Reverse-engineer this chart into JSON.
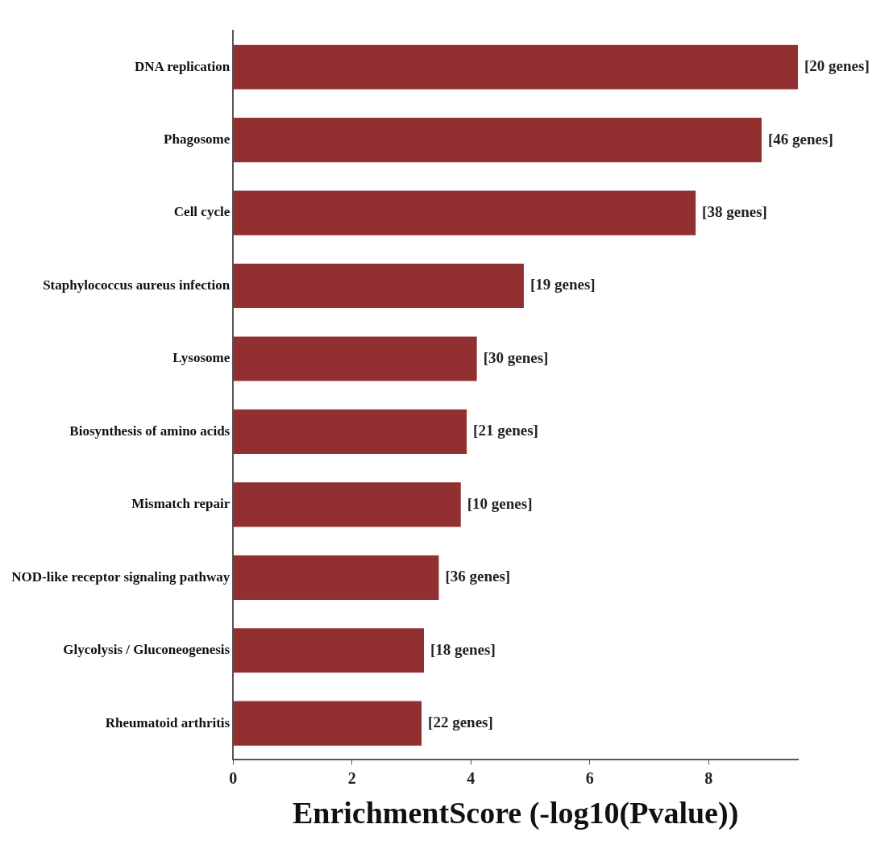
{
  "chart_data": {
    "type": "bar",
    "orientation": "horizontal",
    "xlabel": "EnrichmentScore (-log10(Pvalue))",
    "categories": [
      "DNA replication",
      "Phagosome",
      "Cell cycle",
      "Staphylococcus aureus infection",
      "Lysosome",
      "Biosynthesis of amino acids",
      "Mismatch repair",
      "NOD-like receptor signaling pathway",
      "Glycolysis / Gluconeogenesis",
      "Rheumatoid arthritis"
    ],
    "values": [
      9.5,
      8.89,
      7.78,
      4.89,
      4.1,
      3.93,
      3.83,
      3.46,
      3.21,
      3.17
    ],
    "annotations": [
      {
        "text": "[20 genes]",
        "x": 9.5,
        "y": "DNA replication"
      },
      {
        "text": "[46 genes]",
        "x": 8.89,
        "y": "Phagosome"
      },
      {
        "text": "[38 genes]",
        "x": 7.78,
        "y": "Cell cycle"
      },
      {
        "text": "[19 genes]",
        "x": 4.89,
        "y": "Staphylococcus aureus infection"
      },
      {
        "text": "[30 genes]",
        "x": 4.1,
        "y": "Lysosome"
      },
      {
        "text": "[21 genes]",
        "x": 3.93,
        "y": "Biosynthesis of amino acids"
      },
      {
        "text": "[10 genes]",
        "x": 3.83,
        "y": "Mismatch repair"
      },
      {
        "text": "[36 genes]",
        "x": 3.46,
        "y": "NOD-like receptor signaling pathway"
      },
      {
        "text": "[18 genes]",
        "x": 3.21,
        "y": "Glycolysis / Gluconeogenesis"
      },
      {
        "text": "[22 genes]",
        "x": 3.17,
        "y": "Rheumatoid arthritis"
      }
    ],
    "color": "#922f31",
    "xlim": [
      0,
      9.5
    ],
    "xticks": [
      0,
      2,
      4,
      6,
      8
    ],
    "grid": false,
    "legend": false
  }
}
